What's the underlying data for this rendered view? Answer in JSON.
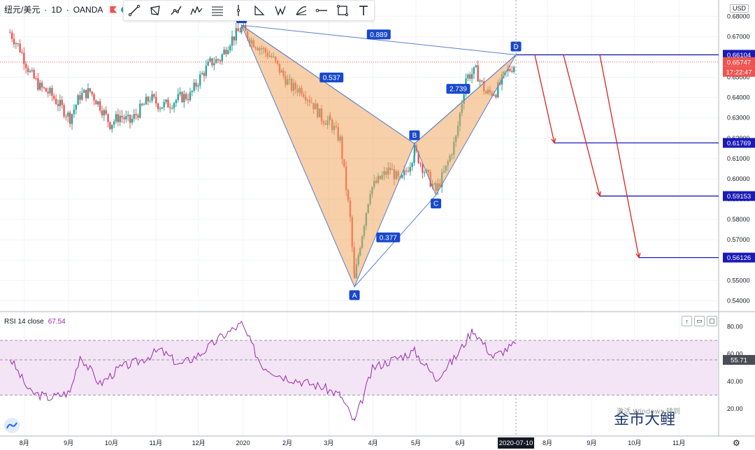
{
  "header": {
    "symbol": "纽元/美元",
    "interval": "1D",
    "broker": "OANDA",
    "sep": "·"
  },
  "toolbar": {
    "tools": [
      "trend-line-icon",
      "rect-pattern-icon",
      "path-icon",
      "multipoint-pattern-icon",
      "fib-lines-icon",
      "vertical-line-icon",
      "triangle-icon",
      "xabcd-pattern-icon",
      "fib-fan-icon",
      "horizontal-ray-icon",
      "rectangle-icon",
      "text-icon"
    ]
  },
  "price_axis": {
    "currency": "USD",
    "ticks": [
      "0.68000",
      "0.67000",
      "0.66000",
      "0.65000",
      "0.64000",
      "0.63000",
      "0.62000",
      "0.61000",
      "0.60000",
      "0.59000",
      "0.58000",
      "0.57000",
      "0.56000",
      "0.55000",
      "0.54000"
    ],
    "labels": [
      {
        "text": "0.66104",
        "value": 0.66104,
        "kind": "target"
      },
      {
        "text": "0.65747",
        "value": 0.65747,
        "kind": "last"
      },
      {
        "text": "17:22:47",
        "kind": "countdown"
      },
      {
        "text": "0.61769",
        "value": 0.61769,
        "kind": "target"
      },
      {
        "text": "0.59153",
        "value": 0.59153,
        "kind": "target"
      },
      {
        "text": "0.56126",
        "value": 0.56126,
        "kind": "target"
      }
    ]
  },
  "time_axis": {
    "ticks": [
      "8月",
      "9月",
      "10月",
      "11月",
      "12月",
      "2020",
      "2月",
      "3月",
      "4月",
      "5月",
      "6月",
      "7月",
      "8月",
      "9月",
      "10月",
      "11月"
    ],
    "cursor_label": "2020-07-10"
  },
  "rsi": {
    "label": "RSI 14 close",
    "value": "67.54",
    "ticks": [
      "80.00",
      "60.00",
      "40.00",
      "20.00"
    ],
    "midline_value": "55.71",
    "upper_band": 70,
    "lower_band": 30
  },
  "watermark": {
    "main": "金市大鲤",
    "sub": "激活 Windows 转到"
  },
  "colors": {
    "up": "#26a69a",
    "down": "#ef5350",
    "pattern_fill": "#f0a860",
    "pattern_line": "#5b7fc7",
    "label_bg": "#1848cc",
    "target_line": "#1a1ab8",
    "arrow": "#e02020",
    "rsi": "#9c27b0",
    "rsi_band": "#f3e5f5"
  },
  "chart_data": {
    "type": "candlestick-harmonic",
    "pattern": {
      "points": [
        {
          "label": "X",
          "date": "2019-12-31",
          "price": 0.6756
        },
        {
          "label": "A",
          "date": "2020-03-19",
          "price": 0.5469
        },
        {
          "label": "B",
          "date": "2020-04-30",
          "price": 0.6173
        },
        {
          "label": "C",
          "date": "2020-05-15",
          "price": 0.592
        },
        {
          "label": "D",
          "date": "2020-07-10",
          "price": 0.661
        }
      ],
      "ratios": [
        {
          "text": "0.537",
          "between": "XB"
        },
        {
          "text": "0.377",
          "between": "AC"
        },
        {
          "text": "2.739",
          "between": "BD"
        },
        {
          "text": "0.889",
          "between": "XD"
        }
      ]
    },
    "targets": [
      0.66104,
      0.61769,
      0.59153,
      0.56126
    ],
    "last_price": 0.65747,
    "ylim": [
      0.535,
      0.688
    ],
    "price_path": [
      [
        "2019-07-22",
        0.672
      ],
      [
        "2019-07-29",
        0.664
      ],
      [
        "2019-08-05",
        0.652
      ],
      [
        "2019-08-12",
        0.645
      ],
      [
        "2019-08-19",
        0.642
      ],
      [
        "2019-08-26",
        0.636
      ],
      [
        "2019-09-02",
        0.63
      ],
      [
        "2019-09-09",
        0.641
      ],
      [
        "2019-09-16",
        0.643
      ],
      [
        "2019-09-23",
        0.636
      ],
      [
        "2019-09-30",
        0.627
      ],
      [
        "2019-10-07",
        0.631
      ],
      [
        "2019-10-14",
        0.628
      ],
      [
        "2019-10-21",
        0.634
      ],
      [
        "2019-10-28",
        0.64
      ],
      [
        "2019-11-04",
        0.636
      ],
      [
        "2019-11-11",
        0.637
      ],
      [
        "2019-11-18",
        0.64
      ],
      [
        "2019-11-25",
        0.641
      ],
      [
        "2019-12-02",
        0.65
      ],
      [
        "2019-12-09",
        0.657
      ],
      [
        "2019-12-16",
        0.659
      ],
      [
        "2019-12-23",
        0.668
      ],
      [
        "2019-12-31",
        0.674
      ],
      [
        "2020-01-07",
        0.668
      ],
      [
        "2020-01-14",
        0.664
      ],
      [
        "2020-01-21",
        0.66
      ],
      [
        "2020-01-28",
        0.652
      ],
      [
        "2020-02-04",
        0.645
      ],
      [
        "2020-02-11",
        0.644
      ],
      [
        "2020-02-18",
        0.638
      ],
      [
        "2020-02-25",
        0.63
      ],
      [
        "2020-03-02",
        0.628
      ],
      [
        "2020-03-09",
        0.619
      ],
      [
        "2020-03-16",
        0.58
      ],
      [
        "2020-03-19",
        0.55
      ],
      [
        "2020-03-23",
        0.568
      ],
      [
        "2020-03-30",
        0.595
      ],
      [
        "2020-04-06",
        0.6
      ],
      [
        "2020-04-13",
        0.605
      ],
      [
        "2020-04-20",
        0.598
      ],
      [
        "2020-04-27",
        0.608
      ],
      [
        "2020-04-30",
        0.614
      ],
      [
        "2020-05-07",
        0.604
      ],
      [
        "2020-05-15",
        0.594
      ],
      [
        "2020-05-22",
        0.605
      ],
      [
        "2020-05-29",
        0.62
      ],
      [
        "2020-06-05",
        0.65
      ],
      [
        "2020-06-12",
        0.653
      ],
      [
        "2020-06-19",
        0.642
      ],
      [
        "2020-06-26",
        0.643
      ],
      [
        "2020-07-03",
        0.652
      ],
      [
        "2020-07-10",
        0.657
      ]
    ],
    "rsi_path": [
      [
        "2019-07-22",
        57
      ],
      [
        "2019-08-05",
        32
      ],
      [
        "2019-08-19",
        28
      ],
      [
        "2019-09-02",
        32
      ],
      [
        "2019-09-09",
        59
      ],
      [
        "2019-09-23",
        38
      ],
      [
        "2019-10-07",
        50
      ],
      [
        "2019-10-21",
        55
      ],
      [
        "2019-11-04",
        63
      ],
      [
        "2019-11-18",
        52
      ],
      [
        "2019-12-02",
        60
      ],
      [
        "2019-12-16",
        72
      ],
      [
        "2019-12-31",
        82
      ],
      [
        "2020-01-14",
        52
      ],
      [
        "2020-01-28",
        44
      ],
      [
        "2020-02-11",
        40
      ],
      [
        "2020-02-25",
        36
      ],
      [
        "2020-03-09",
        30
      ],
      [
        "2020-03-19",
        10
      ],
      [
        "2020-04-01",
        50
      ],
      [
        "2020-04-15",
        56
      ],
      [
        "2020-04-30",
        62
      ],
      [
        "2020-05-15",
        42
      ],
      [
        "2020-05-29",
        58
      ],
      [
        "2020-06-10",
        78
      ],
      [
        "2020-06-24",
        58
      ],
      [
        "2020-07-10",
        67.5
      ]
    ]
  }
}
